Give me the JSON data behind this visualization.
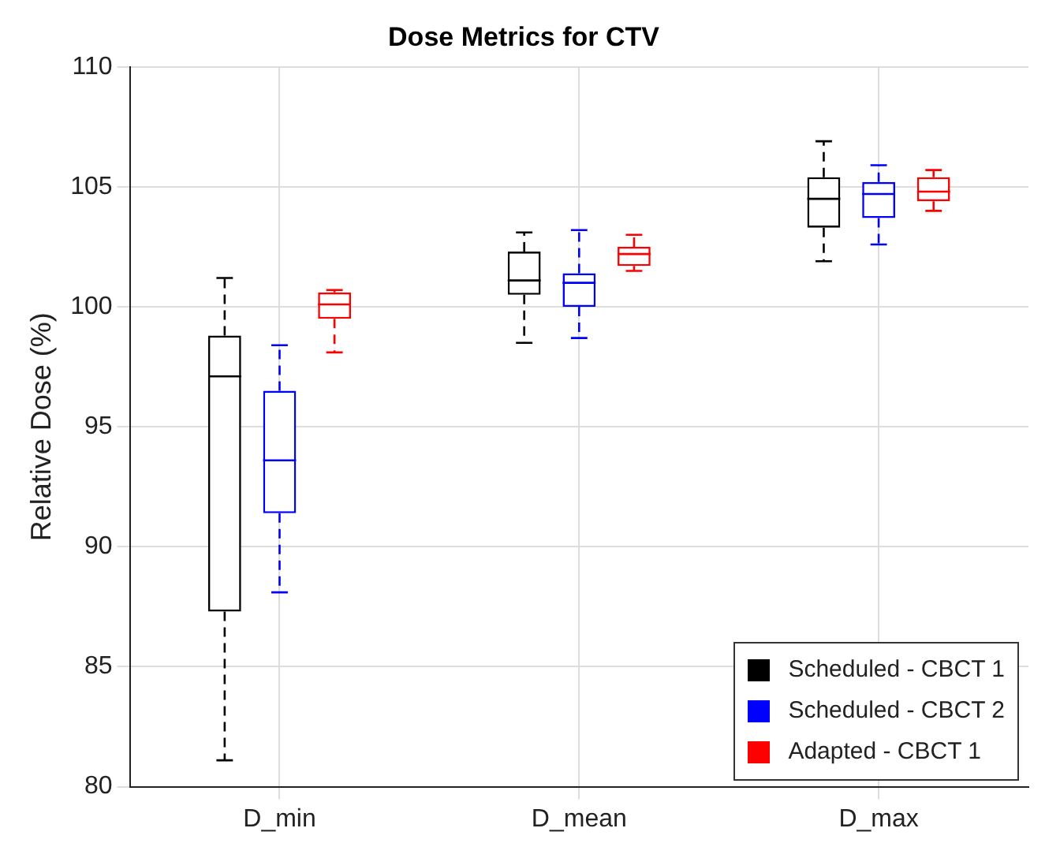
{
  "chart_data": {
    "type": "box",
    "title": "Dose Metrics for CTV",
    "ylabel": "Relative Dose (%)",
    "categories": [
      "D_min",
      "D_mean",
      "D_max"
    ],
    "ylim": [
      80,
      110
    ],
    "yticks": [
      80,
      85,
      90,
      95,
      100,
      105,
      110
    ],
    "grid": true,
    "legend": "bottom right",
    "line_style": "dashed",
    "series": [
      {
        "name": "Scheduled - CBCT 1",
        "color": "#000000",
        "boxes": [
          {
            "low": 81.1,
            "q1": 87.3,
            "median": 97.1,
            "q3": 98.8,
            "high": 101.2
          },
          {
            "low": 98.5,
            "q1": 100.5,
            "median": 101.1,
            "q3": 102.3,
            "high": 103.1
          },
          {
            "low": 101.9,
            "q1": 103.3,
            "median": 104.5,
            "q3": 105.4,
            "high": 106.9
          }
        ]
      },
      {
        "name": "Scheduled - CBCT 2",
        "color": "#0000ff",
        "boxes": [
          {
            "low": 88.1,
            "q1": 91.4,
            "median": 93.6,
            "q3": 96.5,
            "high": 98.4
          },
          {
            "low": 98.7,
            "q1": 100.0,
            "median": 101.0,
            "q3": 101.4,
            "high": 103.2
          },
          {
            "low": 102.6,
            "q1": 103.7,
            "median": 104.7,
            "q3": 105.2,
            "high": 105.9
          }
        ]
      },
      {
        "name": "Adapted - CBCT 1",
        "color": "#ff0000",
        "boxes": [
          {
            "low": 98.1,
            "q1": 99.5,
            "median": 100.1,
            "q3": 100.6,
            "high": 100.7
          },
          {
            "low": 101.5,
            "q1": 101.7,
            "median": 102.2,
            "q3": 102.5,
            "high": 103.0
          },
          {
            "low": 104.0,
            "q1": 104.4,
            "median": 104.8,
            "q3": 105.4,
            "high": 105.7
          }
        ]
      }
    ]
  }
}
